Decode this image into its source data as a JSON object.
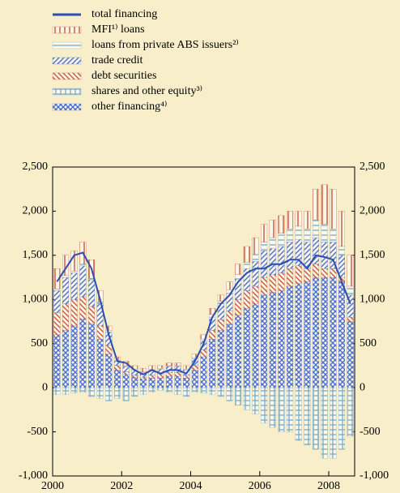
{
  "chart_data": {
    "type": "bar",
    "stacked": true,
    "x": [
      2000.125,
      2000.375,
      2000.625,
      2000.875,
      2001.125,
      2001.375,
      2001.625,
      2001.875,
      2002.125,
      2002.375,
      2002.625,
      2002.875,
      2003.125,
      2003.375,
      2003.625,
      2003.875,
      2004.125,
      2004.375,
      2004.625,
      2004.875,
      2005.125,
      2005.375,
      2005.625,
      2005.875,
      2006.125,
      2006.375,
      2006.625,
      2006.875,
      2007.125,
      2007.375,
      2007.625,
      2007.875,
      2008.125,
      2008.375,
      2008.625
    ],
    "xlim": [
      2000,
      2008.75
    ],
    "xticks": [
      2000,
      2002,
      2004,
      2006,
      2008
    ],
    "ylim": [
      -1000,
      2500
    ],
    "yticks": [
      {
        "value": -1000,
        "label": "-1,000"
      },
      -500,
      0,
      500,
      {
        "value": 1000,
        "label": "1,000"
      },
      {
        "value": 1500,
        "label": "1,500"
      },
      {
        "value": 2000,
        "label": "2,000"
      },
      {
        "value": 2500,
        "label": "2,500"
      }
    ],
    "series": [
      {
        "name": "total financing",
        "type": "line",
        "color": "#2a4fb0",
        "values": [
          1200,
          1350,
          1500,
          1530,
          1350,
          1000,
          600,
          300,
          280,
          200,
          150,
          200,
          160,
          200,
          200,
          160,
          300,
          500,
          800,
          950,
          1050,
          1200,
          1300,
          1350,
          1350,
          1400,
          1400,
          1450,
          1450,
          1350,
          1500,
          1480,
          1450,
          1200,
          950
        ]
      },
      {
        "name": "MFI¹⁾ loans",
        "color": "#c8553d",
        "hatch": "vertical",
        "values": [
          230,
          230,
          230,
          250,
          210,
          130,
          50,
          40,
          50,
          40,
          40,
          40,
          30,
          30,
          30,
          40,
          40,
          50,
          70,
          70,
          90,
          120,
          180,
          190,
          200,
          200,
          200,
          200,
          170,
          200,
          350,
          450,
          450,
          400,
          350
        ]
      },
      {
        "name": "loans from private ABS issuers²⁾",
        "color": "#7fb0c8",
        "hatch": "horizontal",
        "values": [
          20,
          20,
          20,
          20,
          20,
          20,
          20,
          10,
          10,
          10,
          10,
          10,
          10,
          10,
          10,
          10,
          10,
          20,
          30,
          30,
          40,
          50,
          70,
          80,
          100,
          120,
          150,
          150,
          150,
          150,
          200,
          200,
          150,
          100,
          100
        ]
      },
      {
        "name": "trade credit",
        "color": "#4a6fd0",
        "hatch": "diagonal",
        "values": [
          250,
          300,
          300,
          350,
          300,
          250,
          150,
          50,
          60,
          60,
          50,
          60,
          60,
          70,
          70,
          60,
          80,
          100,
          150,
          180,
          200,
          230,
          250,
          280,
          300,
          300,
          300,
          300,
          300,
          300,
          300,
          300,
          300,
          250,
          250
        ]
      },
      {
        "name": "debt securities",
        "color": "#c8553d",
        "hatch": "antidiagonal",
        "values": [
          250,
          300,
          300,
          250,
          200,
          150,
          100,
          50,
          30,
          20,
          20,
          30,
          40,
          40,
          40,
          30,
          50,
          80,
          100,
          120,
          150,
          180,
          200,
          200,
          200,
          200,
          200,
          200,
          200,
          150,
          150,
          100,
          100,
          50,
          50
        ]
      },
      {
        "name": "shares and other equity³⁾",
        "color": "#7fb0c8",
        "hatch": "grid",
        "values": [
          -80,
          -80,
          -60,
          -50,
          -100,
          -120,
          -150,
          -120,
          -150,
          -100,
          -80,
          -50,
          -30,
          -50,
          -80,
          -100,
          -50,
          -60,
          -80,
          -100,
          -150,
          -200,
          -250,
          -300,
          -400,
          -450,
          -500,
          -500,
          -600,
          -650,
          -700,
          -800,
          -800,
          -700,
          -550
        ]
      },
      {
        "name": "other financing⁴⁾",
        "color": "#4a6fd0",
        "hatch": "cross",
        "values": [
          600,
          650,
          700,
          780,
          720,
          550,
          380,
          200,
          150,
          120,
          100,
          110,
          110,
          130,
          130,
          110,
          200,
          350,
          550,
          650,
          720,
          820,
          900,
          950,
          1050,
          1080,
          1100,
          1150,
          1180,
          1200,
          1250,
          1250,
          1250,
          1200,
          750
        ]
      }
    ]
  }
}
